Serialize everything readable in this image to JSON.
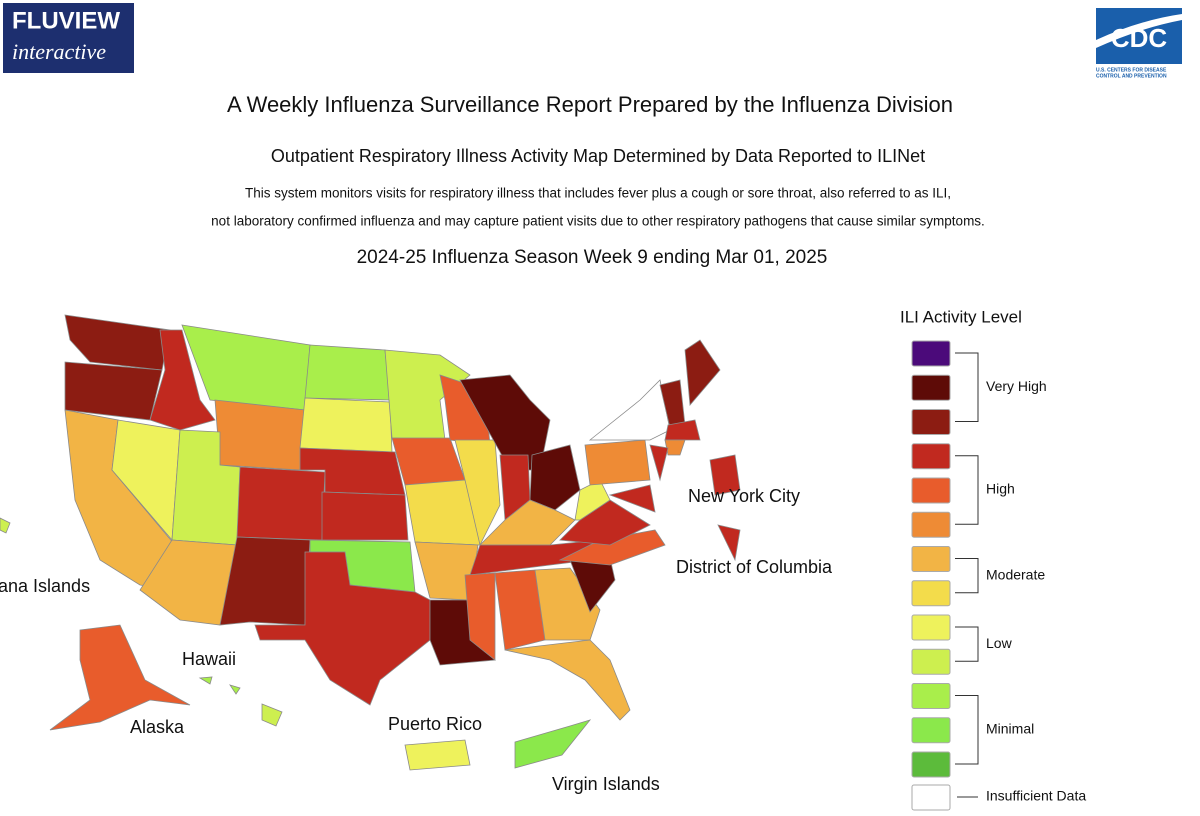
{
  "header": {
    "logo_text": "FLUVIEW",
    "logo_subtext": "interactive",
    "cdc_text": "CDC",
    "cdc_subtext": [
      "U.S. CENTERS FOR DISEASE",
      "CONTROL AND PREVENTION"
    ]
  },
  "title": "A Weekly Influenza Surveillance Report Prepared by the Influenza Division",
  "subtitle": "Outpatient Respiratory Illness Activity Map Determined by Data Reported to ILINet",
  "description": [
    "This system monitors visits for respiratory illness that includes fever plus a cough or sore throat, also referred to as ILI,",
    "not laboratory confirmed influenza and may capture patient visits due to other respiratory pathogens that cause similar symptoms."
  ],
  "season": "2024-25 Influenza Season Week 9 ending Mar 01, 2025",
  "map": {
    "labels": [
      "New York City",
      "District of Columbia",
      "ana Islands",
      "Hawaii",
      "Alaska",
      "Puerto Rico",
      "Virgin Islands"
    ]
  },
  "legend": {
    "title": "ILI Activity Level",
    "colors": [
      "#4b0a7a",
      "#5e0b07",
      "#8c1c12",
      "#c1291f",
      "#e85c2c",
      "#ee8b35",
      "#f2b445",
      "#f3dc4b",
      "#eef25c",
      "#cdef4f",
      "#a9ee4b",
      "#8be84b",
      "#5cbb3b",
      "#ffffff"
    ],
    "groups": [
      "Very High",
      "High",
      "Moderate",
      "Low",
      "Minimal"
    ],
    "insufficient": "Insufficient Data"
  }
}
